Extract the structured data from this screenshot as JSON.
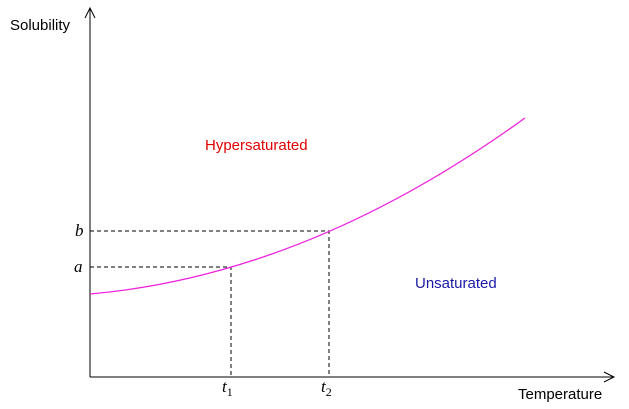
{
  "axes": {
    "y_label": "Solubility",
    "x_label": "Temperature"
  },
  "regions": {
    "upper": "Hypersaturated",
    "lower": "Unsaturated"
  },
  "markers": {
    "a": "a",
    "b": "b",
    "t1": {
      "symbol": "t",
      "subscript": "1"
    },
    "t2": {
      "symbol": "t",
      "subscript": "2"
    }
  }
}
